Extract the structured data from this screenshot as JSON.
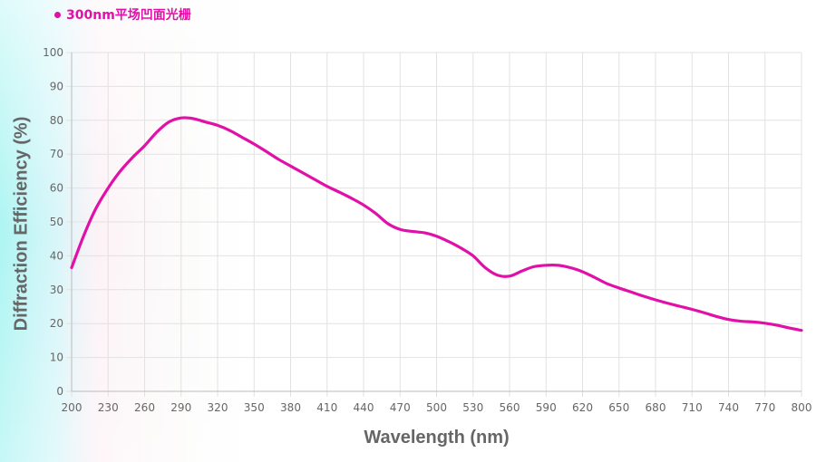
{
  "colors": {
    "series": "#E010A8",
    "grid": "#E2E2E2",
    "axis": "#BBBBBB",
    "text": "#666666"
  },
  "chart_data": {
    "type": "line",
    "title": "",
    "xlabel": "Wavelength (nm)",
    "ylabel": "Diffraction Efficiency (%)",
    "xlim": [
      200,
      800
    ],
    "ylim": [
      0,
      100
    ],
    "x_ticks": [
      200,
      230,
      260,
      290,
      320,
      350,
      380,
      410,
      440,
      470,
      500,
      530,
      560,
      590,
      620,
      650,
      680,
      710,
      740,
      770,
      800
    ],
    "y_ticks": [
      0,
      10,
      20,
      30,
      40,
      50,
      60,
      70,
      80,
      90,
      100
    ],
    "grid": true,
    "legend": "top-left",
    "series": [
      {
        "name": "300nm平场凹面光栅",
        "x": [
          200,
          210,
          220,
          230,
          240,
          250,
          260,
          270,
          280,
          290,
          300,
          310,
          320,
          330,
          340,
          350,
          360,
          370,
          380,
          390,
          400,
          410,
          420,
          430,
          440,
          450,
          460,
          470,
          480,
          490,
          500,
          510,
          520,
          530,
          540,
          550,
          560,
          570,
          580,
          590,
          600,
          610,
          620,
          630,
          640,
          650,
          660,
          670,
          680,
          690,
          700,
          710,
          720,
          730,
          740,
          750,
          760,
          770,
          780,
          790,
          800
        ],
        "y": [
          36.5,
          46,
          54,
          60,
          65,
          69,
          72.5,
          76.5,
          79.5,
          80.7,
          80.5,
          79.5,
          78.5,
          77,
          75,
          73,
          70.8,
          68.5,
          66.5,
          64.5,
          62.5,
          60.5,
          58.8,
          57,
          55,
          52.5,
          49.5,
          47.8,
          47.2,
          46.8,
          45.8,
          44.2,
          42.3,
          40,
          36.5,
          34.3,
          34,
          35.5,
          36.8,
          37.2,
          37.2,
          36.5,
          35.3,
          33.6,
          31.8,
          30.5,
          29.3,
          28.1,
          27,
          26,
          25.1,
          24.2,
          23.2,
          22.1,
          21.2,
          20.7,
          20.5,
          20.1,
          19.5,
          18.7,
          18
        ]
      }
    ]
  }
}
